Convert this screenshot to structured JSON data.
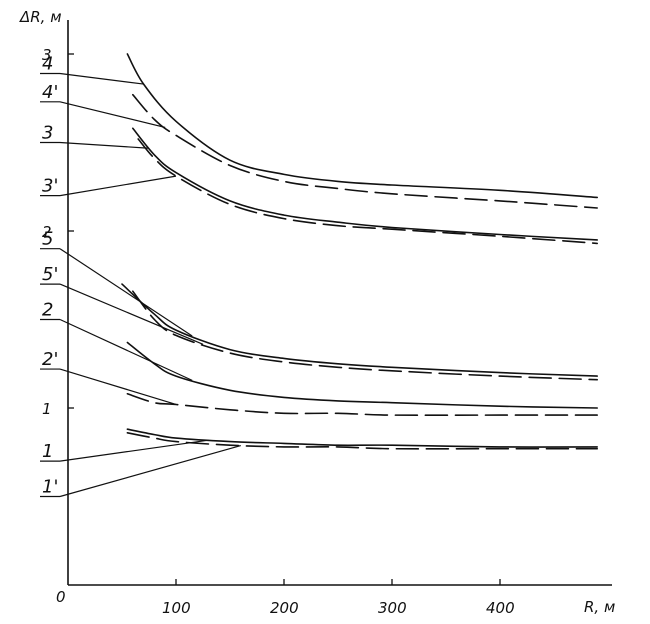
{
  "chart_data": {
    "type": "line",
    "title": "",
    "xlabel": "R, м",
    "ylabel": "ΔR, м",
    "origin_label": "0",
    "xlim": [
      0,
      490
    ],
    "ylim": [
      0,
      3.1
    ],
    "xticks": [
      100,
      200,
      300,
      400
    ],
    "xtick_labels": [
      "100",
      "200",
      "300",
      "400"
    ],
    "yticks": [
      1,
      2,
      3
    ],
    "ytick_labels": [
      "1",
      "2",
      "3"
    ],
    "grid": false,
    "series": [
      {
        "name": "4",
        "style": "solid",
        "label_y": 2.89,
        "x": [
          55,
          70,
          100,
          150,
          200,
          250,
          300,
          400,
          490
        ],
        "y": [
          3.0,
          2.83,
          2.62,
          2.4,
          2.32,
          2.28,
          2.26,
          2.23,
          2.19
        ]
      },
      {
        "name": "4'",
        "style": "dashed",
        "label_y": 2.73,
        "x": [
          60,
          80,
          100,
          150,
          200,
          250,
          300,
          400,
          490
        ],
        "y": [
          2.77,
          2.63,
          2.54,
          2.37,
          2.28,
          2.24,
          2.21,
          2.17,
          2.13
        ]
      },
      {
        "name": "3",
        "style": "solid",
        "label_y": 2.5,
        "x": [
          60,
          80,
          100,
          150,
          200,
          250,
          300,
          400,
          490
        ],
        "y": [
          2.58,
          2.43,
          2.33,
          2.17,
          2.09,
          2.05,
          2.02,
          1.98,
          1.95
        ]
      },
      {
        "name": "3'",
        "style": "dashed",
        "label_y": 2.2,
        "x": [
          65,
          80,
          100,
          150,
          200,
          250,
          300,
          400,
          490
        ],
        "y": [
          2.52,
          2.41,
          2.31,
          2.15,
          2.07,
          2.03,
          2.01,
          1.97,
          1.93
        ]
      },
      {
        "name": "5",
        "style": "solid",
        "label_y": 1.9,
        "x": [
          50,
          80,
          100,
          150,
          200,
          250,
          300,
          400,
          490
        ],
        "y": [
          1.7,
          1.53,
          1.44,
          1.33,
          1.28,
          1.25,
          1.23,
          1.2,
          1.18
        ]
      },
      {
        "name": "5'",
        "style": "dashed",
        "label_y": 1.7,
        "x": [
          60,
          80,
          100,
          150,
          200,
          250,
          300,
          400,
          490
        ],
        "y": [
          1.66,
          1.5,
          1.41,
          1.31,
          1.26,
          1.23,
          1.21,
          1.18,
          1.16
        ]
      },
      {
        "name": "2",
        "style": "solid",
        "label_y": 1.5,
        "x": [
          55,
          80,
          100,
          150,
          200,
          250,
          300,
          400,
          490
        ],
        "y": [
          1.37,
          1.25,
          1.18,
          1.1,
          1.06,
          1.04,
          1.03,
          1.01,
          1.0
        ]
      },
      {
        "name": "2'",
        "style": "dashed",
        "label_y": 1.22,
        "x": [
          55,
          80,
          100,
          150,
          200,
          250,
          300,
          400,
          490
        ],
        "y": [
          1.08,
          1.03,
          1.02,
          0.99,
          0.97,
          0.97,
          0.96,
          0.96,
          0.96
        ]
      },
      {
        "name": "1",
        "style": "solid",
        "label_y": 0.7,
        "x": [
          55,
          80,
          100,
          150,
          200,
          250,
          300,
          400,
          490
        ],
        "y": [
          0.88,
          0.85,
          0.83,
          0.81,
          0.8,
          0.79,
          0.79,
          0.78,
          0.78
        ]
      },
      {
        "name": "1'",
        "style": "dashed",
        "label_y": 0.5,
        "x": [
          55,
          80,
          100,
          150,
          200,
          250,
          300,
          400,
          490
        ],
        "y": [
          0.86,
          0.83,
          0.81,
          0.79,
          0.78,
          0.78,
          0.77,
          0.77,
          0.77
        ]
      }
    ]
  }
}
